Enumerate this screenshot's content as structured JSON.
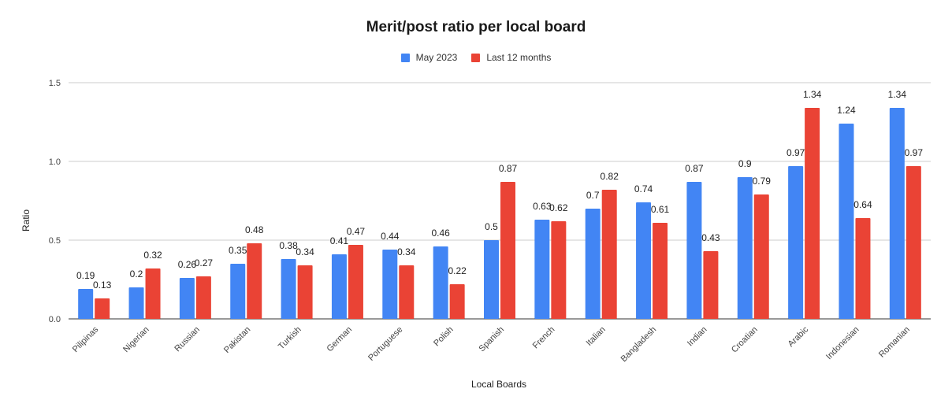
{
  "chart_data": {
    "type": "bar",
    "title": "Merit/post ratio per local board",
    "xlabel": "Local Boards",
    "ylabel": "Ratio",
    "ylim": [
      0,
      1.5
    ],
    "yticks": [
      "0.0",
      "0.5",
      "1.0",
      "1.5"
    ],
    "grid": true,
    "legend_position": "top",
    "categories": [
      "Pilipinas",
      "Nigerian",
      "Russian",
      "Pakistan",
      "Turkish",
      "German",
      "Portuguese",
      "Polish",
      "Spanish",
      "French",
      "Italian",
      "Bangladesh",
      "Indian",
      "Croatian",
      "Arabic",
      "Indonesian",
      "Romanian"
    ],
    "series": [
      {
        "name": "May 2023",
        "color": "#4285f4",
        "values": [
          0.19,
          0.2,
          0.26,
          0.35,
          0.38,
          0.41,
          0.44,
          0.46,
          0.5,
          0.63,
          0.7,
          0.74,
          0.87,
          0.9,
          0.97,
          1.24,
          1.34
        ],
        "labels": [
          "0.19",
          "0.2",
          "0.26",
          "0.35",
          "0.38",
          "0.41",
          "0.44",
          "0.46",
          "0.5",
          "0.63",
          "0.7",
          "0.74",
          "0.87",
          "0.9",
          "0.97",
          "1.24",
          "1.34"
        ]
      },
      {
        "name": "Last 12 months",
        "color": "#ea4335",
        "values": [
          0.13,
          0.32,
          0.27,
          0.48,
          0.34,
          0.47,
          0.34,
          0.22,
          0.87,
          0.62,
          0.82,
          0.61,
          0.43,
          0.79,
          1.34,
          0.64,
          0.97
        ],
        "labels": [
          "0.13",
          "0.32",
          "0.27",
          "0.48",
          "0.34",
          "0.47",
          "0.34",
          "0.22",
          "0.87",
          "0.62",
          "0.82",
          "0.61",
          "0.43",
          "0.79",
          "1.34",
          "0.64",
          "0.97"
        ]
      }
    ]
  }
}
